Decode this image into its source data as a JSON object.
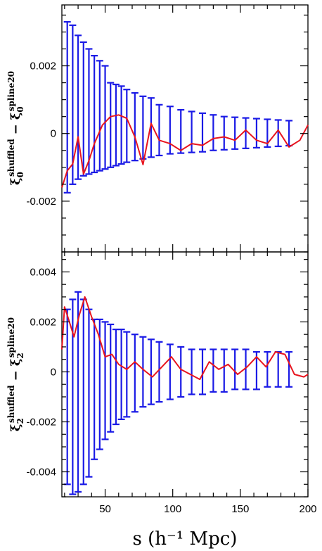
{
  "colors": {
    "errorbar": "#1a1ae6",
    "curve": "#e8141e",
    "axis": "#000000"
  },
  "chart_data": [
    {
      "type": "line",
      "panel": "top",
      "ylabel": {
        "sym": "ξ",
        "sub": "0",
        "sup1": "shuffled",
        "minus": "−",
        "sup2": "spline20"
      },
      "xlim": [
        18,
        200
      ],
      "ylim": [
        -0.0035,
        0.0038
      ],
      "xticks": [
        50,
        100,
        150,
        200
      ],
      "yticks": [
        -0.002,
        0,
        0.002
      ],
      "yticklabels": [
        "-0.002",
        "0",
        "0.002"
      ],
      "show_xticklabels": false,
      "errorbars": {
        "x": [
          22,
          26,
          30,
          34,
          38,
          42,
          46,
          50,
          54,
          58,
          62,
          66,
          72,
          78,
          84,
          90,
          98,
          106,
          114,
          122,
          130,
          138,
          146,
          154,
          162,
          170,
          178,
          186
        ],
        "ylow": [
          -0.00175,
          -0.0015,
          -0.00135,
          -0.00125,
          -0.0012,
          -0.00115,
          -0.0011,
          -0.00105,
          -0.001,
          -0.00095,
          -0.0009,
          -0.00085,
          -0.0008,
          -0.00075,
          -0.0007,
          -0.00065,
          -0.0006,
          -0.00058,
          -0.00056,
          -0.00054,
          -0.0005,
          -0.00048,
          -0.00046,
          -0.00044,
          -0.00042,
          -0.0004,
          -0.00038,
          -0.00036
        ],
        "yhigh": [
          0.0033,
          0.0032,
          0.0029,
          0.0027,
          0.0025,
          0.0023,
          0.00215,
          0.002,
          0.0015,
          0.00145,
          0.0014,
          0.0013,
          0.0012,
          0.0011,
          0.00105,
          0.00085,
          0.0008,
          0.0007,
          0.00065,
          0.0006,
          0.00055,
          0.0005,
          0.00048,
          0.00046,
          0.00044,
          0.00042,
          0.0004,
          0.00038
        ]
      },
      "series": [
        {
          "x": [
            18,
            22,
            26,
            30,
            34,
            38,
            42,
            48,
            54,
            60,
            66,
            72,
            78,
            84,
            90,
            98,
            106,
            114,
            122,
            130,
            138,
            146,
            154,
            162,
            170,
            178,
            186,
            194,
            200
          ],
          "y": [
            -0.0016,
            -0.0011,
            -0.0009,
            -0.0001,
            -0.0012,
            -0.0008,
            -0.0003,
            0.00025,
            0.0005,
            0.00055,
            0.00045,
            -0.0001,
            -0.00092,
            0.0003,
            -0.0002,
            -0.0003,
            -0.0005,
            -0.0003,
            -0.00035,
            -0.00015,
            -0.0001,
            -0.0002,
            0.0001,
            -0.0002,
            -0.0003,
            0.0001,
            -0.0004,
            -0.0002,
            0.00025
          ]
        }
      ]
    },
    {
      "type": "line",
      "panel": "bottom",
      "ylabel": {
        "sym": "ξ",
        "sub": "2",
        "sup1": "shuffled",
        "minus": "−",
        "sup2": "spline20"
      },
      "xlabel": "s (h⁻¹ Mpc)",
      "xlim": [
        18,
        200
      ],
      "ylim": [
        -0.005,
        0.0048
      ],
      "xticks": [
        50,
        100,
        150,
        200
      ],
      "xticklabels": [
        "50",
        "100",
        "150",
        "200"
      ],
      "yticks": [
        -0.004,
        -0.002,
        0,
        0.002,
        0.004
      ],
      "yticklabels": [
        "-0.004",
        "-0.002",
        "0",
        "0.002",
        "0.004"
      ],
      "show_xticklabels": true,
      "errorbars": {
        "x": [
          22,
          26,
          30,
          34,
          38,
          42,
          46,
          50,
          54,
          58,
          62,
          66,
          72,
          78,
          84,
          90,
          98,
          106,
          114,
          122,
          130,
          138,
          146,
          154,
          162,
          170,
          178,
          186
        ],
        "ylow": [
          -0.0045,
          -0.0049,
          -0.0048,
          -0.0045,
          -0.0042,
          -0.0035,
          -0.0031,
          -0.0027,
          -0.0024,
          -0.0021,
          -0.0019,
          -0.0018,
          -0.0016,
          -0.0014,
          -0.0013,
          -0.0012,
          -0.0011,
          -0.001,
          -0.0009,
          -0.0009,
          -0.0008,
          -0.0008,
          -0.0007,
          -0.0007,
          -0.0007,
          -0.0006,
          -0.0006,
          -0.0006
        ],
        "yhigh": [
          0.0025,
          0.0029,
          0.0032,
          0.0029,
          0.0025,
          0.0021,
          0.0021,
          0.002,
          0.0019,
          0.0017,
          0.0017,
          0.0016,
          0.0015,
          0.0014,
          0.0013,
          0.0012,
          0.0011,
          0.001,
          0.0009,
          0.0009,
          0.0009,
          0.0009,
          0.0009,
          0.0009,
          0.0008,
          0.0008,
          0.0008,
          0.0008
        ]
      },
      "series": [
        {
          "x": [
            18,
            20,
            23,
            27,
            31,
            35,
            40,
            45,
            50,
            55,
            60,
            66,
            72,
            78,
            85,
            92,
            99,
            106,
            113,
            120,
            127,
            134,
            141,
            148,
            155,
            162,
            169,
            176,
            183,
            190,
            197,
            200
          ],
          "y": [
            0.0009,
            0.0026,
            0.0021,
            0.0014,
            0.0023,
            0.003,
            0.0022,
            0.0015,
            0.0006,
            0.0007,
            0.0003,
            0.0001,
            0.0004,
            0.0001,
            -0.0002,
            0.0002,
            0.0006,
            0.0001,
            -0.0001,
            -0.0003,
            0.0004,
            0.0001,
            0.0003,
            -0.0001,
            0.0002,
            0.0006,
            0.0002,
            0.0008,
            0.0007,
            -0.0001,
            -0.0002,
            -0.0001
          ]
        }
      ]
    }
  ]
}
